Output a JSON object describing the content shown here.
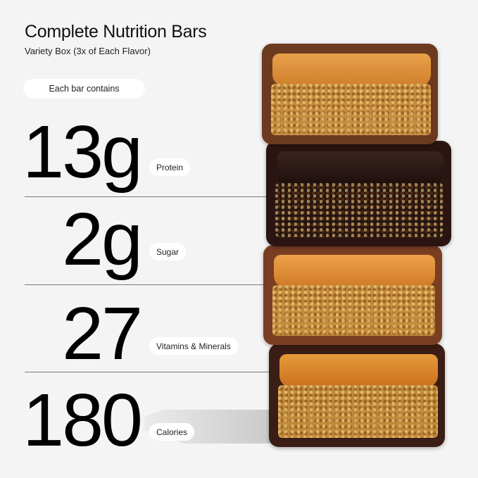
{
  "header": {
    "title": "Complete Nutrition Bars",
    "subtitle": "Variety Box (3x of Each Flavor)"
  },
  "intro_pill": "Each bar contains",
  "stats": [
    {
      "value": "13g",
      "label": "Protein"
    },
    {
      "value": "2g",
      "label": "Sugar"
    },
    {
      "value": "27",
      "label": "Vitamins & Minerals"
    },
    {
      "value": "180",
      "label": "Calories"
    }
  ],
  "colors": {
    "background": "#f4f4f4",
    "text": "#000000",
    "pill": "#ffffff",
    "caramel": "#d98a2e",
    "chocolate": "#2a1512",
    "crust": "#6b3a1f"
  }
}
